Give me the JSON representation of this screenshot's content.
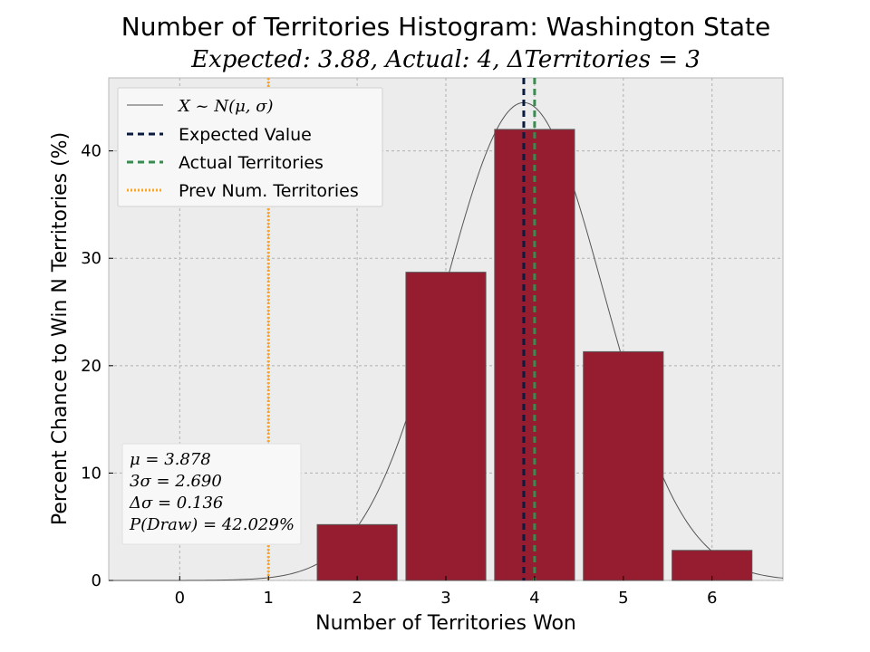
{
  "chart_data": {
    "type": "bar",
    "title": "Number of Territories Histogram: Washington State",
    "subtitle": "Expected: 3.88, Actual: 4, ΔTerritories = 3",
    "xlabel": "Number of Territories Won",
    "ylabel": "Percent Chance to Win N Territories (%)",
    "categories": [
      0,
      1,
      2,
      3,
      4,
      5,
      6
    ],
    "x_tick_labels": [
      "0",
      "1",
      "2",
      "3",
      "4",
      "5",
      "6"
    ],
    "values": [
      0,
      0,
      5.2,
      28.7,
      42.0,
      21.3,
      2.8
    ],
    "xlim": [
      -0.8,
      6.8
    ],
    "ylim": [
      0,
      46.8
    ],
    "y_ticks": [
      0,
      10,
      20,
      30,
      40
    ],
    "y_tick_labels": [
      "0",
      "10",
      "20",
      "30",
      "40"
    ],
    "grid": true,
    "legend_position": "top-left",
    "legend": [
      {
        "label": "X ~ N(μ, σ)",
        "style": "thin-solid",
        "color": "#555555"
      },
      {
        "label": "Expected Value",
        "style": "dashed",
        "color": "#0b1a3d"
      },
      {
        "label": "Actual Territories",
        "style": "dashed",
        "color": "#3a8a52"
      },
      {
        "label": "Prev Num. Territories",
        "style": "dotted",
        "color": "#ffa51f"
      }
    ],
    "normal_curve": {
      "mu": 3.878,
      "sigma": 0.897,
      "peak": 44.5
    },
    "vertical_lines": {
      "expected": 3.878,
      "actual": 4,
      "previous": 1
    },
    "stats_box": [
      "μ = 3.878",
      "3σ = 2.690",
      "Δσ = 0.136",
      "P(Draw) = 42.029%"
    ],
    "colors": {
      "bar": "#961c30",
      "bar_edge": "#555555",
      "plot_bg": "#ececec",
      "grid": "#b0b0b0",
      "expected": "#0b1a3d",
      "actual": "#3a8a52",
      "previous": "#ffa51f",
      "curve": "#555555"
    }
  }
}
